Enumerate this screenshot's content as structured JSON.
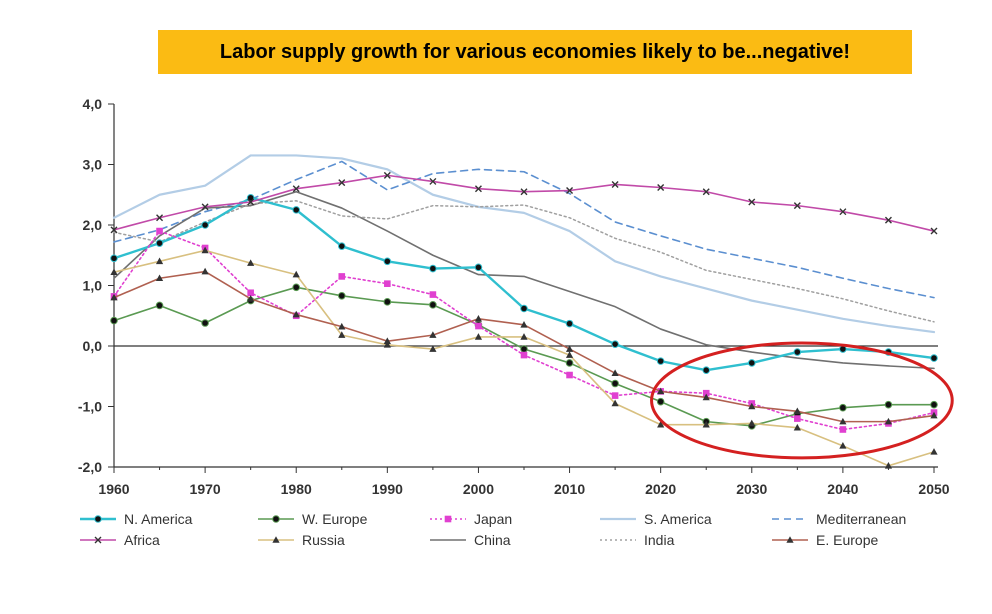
{
  "slide": {
    "title": "Labor supply growth for various economies likely to be...negative!"
  },
  "chart_data": {
    "type": "line",
    "title": "",
    "xlabel": "",
    "ylabel": "",
    "xlim": [
      1960,
      2050
    ],
    "ylim": [
      -2.0,
      4.0
    ],
    "x_ticks": [
      "1960",
      "1970",
      "1980",
      "1990",
      "2000",
      "2010",
      "2020",
      "2030",
      "2040",
      "2050"
    ],
    "y_ticks": [
      "4,0",
      "3,0",
      "2,0",
      "1,0",
      "0,0",
      "-1,0",
      "-2,0"
    ],
    "grid": false,
    "legend_position": "bottom",
    "x": [
      1960,
      1965,
      1970,
      1975,
      1980,
      1985,
      1990,
      1995,
      2000,
      2005,
      2010,
      2015,
      2020,
      2025,
      2030,
      2035,
      2040,
      2045,
      2050
    ],
    "series": [
      {
        "name": "N. America",
        "color": "#2fbfcf",
        "style": "solid",
        "marker": "circle",
        "width": 2.4,
        "values": [
          1.45,
          1.7,
          2.0,
          2.45,
          2.25,
          1.65,
          1.4,
          1.28,
          1.3,
          0.62,
          0.37,
          0.03,
          -0.25,
          -0.4,
          -0.28,
          -0.1,
          -0.05,
          -0.1,
          -0.2
        ]
      },
      {
        "name": "W. Europe",
        "color": "#5a9a52",
        "style": "solid",
        "marker": "circle",
        "width": 1.6,
        "values": [
          0.42,
          0.67,
          0.38,
          0.75,
          0.97,
          0.83,
          0.73,
          0.68,
          0.35,
          -0.05,
          -0.28,
          -0.62,
          -0.92,
          -1.25,
          -1.32,
          -1.12,
          -1.02,
          -0.97,
          -0.97
        ]
      },
      {
        "name": "Japan",
        "color": "#e040d0",
        "style": "dotted",
        "marker": "square",
        "width": 1.6,
        "values": [
          0.82,
          1.9,
          1.62,
          0.88,
          0.5,
          1.15,
          1.03,
          0.85,
          0.33,
          -0.15,
          -0.48,
          -0.82,
          -0.75,
          -0.78,
          -0.95,
          -1.2,
          -1.38,
          -1.28,
          -1.1
        ]
      },
      {
        "name": "S. America",
        "color": "#b3cde6",
        "style": "solid",
        "marker": "none",
        "width": 2.2,
        "values": [
          2.12,
          2.5,
          2.65,
          3.15,
          3.15,
          3.1,
          2.92,
          2.5,
          2.3,
          2.2,
          1.9,
          1.4,
          1.15,
          0.95,
          0.75,
          0.6,
          0.45,
          0.33,
          0.23
        ]
      },
      {
        "name": "Mediterranean",
        "color": "#5b8fd0",
        "style": "dashed",
        "marker": "none",
        "width": 1.6,
        "values": [
          1.72,
          1.92,
          2.22,
          2.42,
          2.75,
          3.05,
          2.58,
          2.85,
          2.92,
          2.88,
          2.52,
          2.05,
          1.82,
          1.6,
          1.45,
          1.3,
          1.12,
          0.95,
          0.8
        ]
      },
      {
        "name": "Africa",
        "color": "#c14aa8",
        "style": "solid",
        "marker": "x",
        "width": 1.6,
        "values": [
          1.92,
          2.12,
          2.3,
          2.38,
          2.6,
          2.7,
          2.82,
          2.72,
          2.6,
          2.55,
          2.57,
          2.67,
          2.62,
          2.55,
          2.38,
          2.32,
          2.22,
          2.08,
          1.9
        ]
      },
      {
        "name": "Russia",
        "color": "#d8c080",
        "style": "solid",
        "marker": "triangle",
        "width": 1.6,
        "values": [
          1.22,
          1.4,
          1.58,
          1.37,
          1.18,
          0.18,
          0.02,
          -0.05,
          0.15,
          0.15,
          -0.15,
          -0.95,
          -1.3,
          -1.3,
          -1.28,
          -1.35,
          -1.65,
          -1.98,
          -1.75
        ]
      },
      {
        "name": "China",
        "color": "#707070",
        "style": "solid",
        "marker": "none",
        "width": 1.6,
        "values": [
          1.12,
          1.82,
          2.28,
          2.32,
          2.55,
          2.28,
          1.9,
          1.5,
          1.18,
          1.15,
          0.9,
          0.65,
          0.28,
          0.02,
          -0.1,
          -0.2,
          -0.28,
          -0.33,
          -0.37
        ]
      },
      {
        "name": "India",
        "color": "#a0a0a0",
        "style": "dotted",
        "marker": "none",
        "width": 1.5,
        "values": [
          1.88,
          1.72,
          2.05,
          2.35,
          2.4,
          2.15,
          2.1,
          2.32,
          2.3,
          2.33,
          2.12,
          1.78,
          1.55,
          1.25,
          1.1,
          0.95,
          0.78,
          0.58,
          0.4
        ]
      },
      {
        "name": "E. Europe",
        "color": "#b06050",
        "style": "solid",
        "marker": "triangle",
        "width": 1.6,
        "values": [
          0.8,
          1.12,
          1.23,
          0.78,
          0.52,
          0.32,
          0.08,
          0.18,
          0.45,
          0.35,
          -0.05,
          -0.45,
          -0.75,
          -0.85,
          -1.0,
          -1.08,
          -1.25,
          -1.25,
          -1.15
        ]
      }
    ],
    "annotation": {
      "shape": "ellipse",
      "color": "#d42020",
      "x_range": [
        2019,
        2052
      ],
      "y_range": [
        -1.85,
        0.05
      ]
    }
  }
}
